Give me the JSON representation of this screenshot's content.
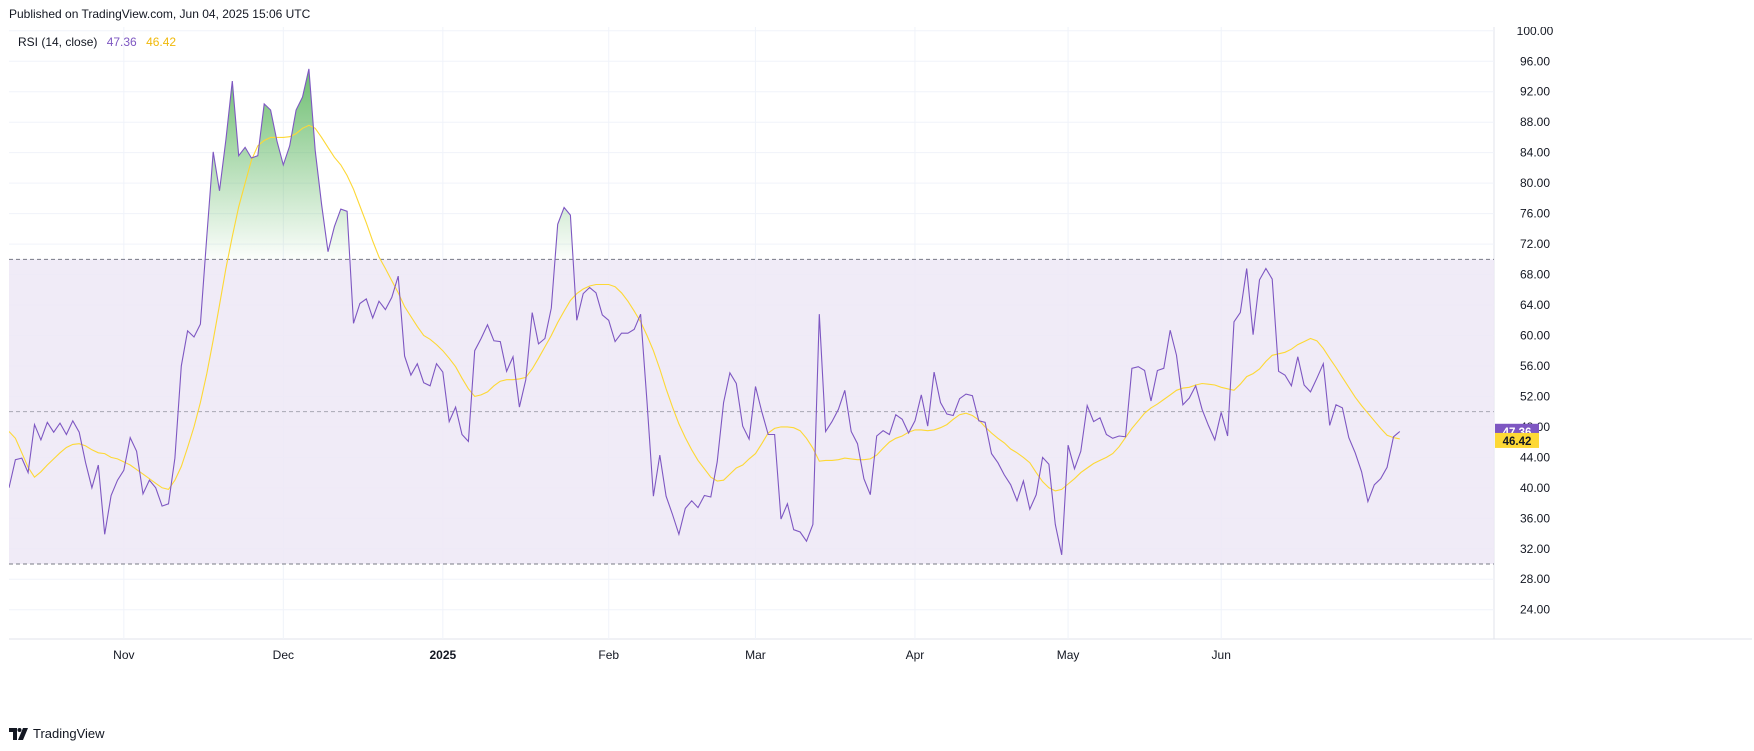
{
  "header": {
    "published": "Published on TradingView.com, Jun 04, 2025 15:06 UTC"
  },
  "legend": {
    "name": "RSI (14, close)",
    "rsi_value": "47.36",
    "ma_value": "46.42"
  },
  "footer": {
    "brand": "TradingView"
  },
  "colors": {
    "rsi_line": "#7e57c2",
    "ma_line": "#fdd835",
    "band_fill": "#ede7f6",
    "overbought_fill": "#4caf50",
    "level_line": "#787b86",
    "grid": "#f0f3fa"
  },
  "chart_data": {
    "type": "line",
    "title": "RSI (14, close)",
    "y_axis": {
      "ticks": [
        "100.00",
        "96.00",
        "92.00",
        "88.00",
        "84.00",
        "80.00",
        "76.00",
        "72.00",
        "68.00",
        "64.00",
        "60.00",
        "56.00",
        "52.00",
        "48.00",
        "44.00",
        "40.00",
        "36.00",
        "32.00",
        "28.00",
        "24.00"
      ],
      "ylim": [
        23.7,
        100.5
      ]
    },
    "x_axis": {
      "labels": [
        "Nov",
        "Dec",
        "2025",
        "Feb",
        "Mar",
        "Apr",
        "May",
        "Jun"
      ],
      "label_index": [
        18,
        43,
        68,
        94,
        117,
        142,
        166,
        190
      ],
      "bold_label": "2025"
    },
    "levels": {
      "upper": 70,
      "middle": 50,
      "lower": 30
    },
    "last_values": {
      "rsi": "47.36",
      "ma": "46.42"
    },
    "series": [
      {
        "name": "RSI",
        "values": [
          40.0,
          43.7,
          43.9,
          42.0,
          48.3,
          46.3,
          48.6,
          47.3,
          48.5,
          47.0,
          48.8,
          47.3,
          43.3,
          40.0,
          43.0,
          33.9,
          39.0,
          41.0,
          42.3,
          46.6,
          44.8,
          39.2,
          41.0,
          40.0,
          37.6,
          37.9,
          43.9,
          56.0,
          60.6,
          59.8,
          61.5,
          73.0,
          84.1,
          79.0,
          85.7,
          93.4,
          83.6,
          84.7,
          83.3,
          83.6,
          90.4,
          89.6,
          85.5,
          82.4,
          84.9,
          89.6,
          91.3,
          95.0,
          84.3,
          77.2,
          71.0,
          74.3,
          76.6,
          76.3,
          61.6,
          64.2,
          64.8,
          62.3,
          64.5,
          63.4,
          65.0,
          67.8,
          57.3,
          54.8,
          56.3,
          53.8,
          53.4,
          56.3,
          55.2,
          48.7,
          50.6,
          47.0,
          46.1,
          58.0,
          59.6,
          61.4,
          59.3,
          59.2,
          55.3,
          57.2,
          50.6,
          54.2,
          63.0,
          58.9,
          59.6,
          63.6,
          74.6,
          76.8,
          75.8,
          62.0,
          65.5,
          66.3,
          65.6,
          62.7,
          62.0,
          59.2,
          60.3,
          60.3,
          60.8,
          62.8,
          51.3,
          38.9,
          44.3,
          38.9,
          36.5,
          33.9,
          37.3,
          38.3,
          37.4,
          39.0,
          38.8,
          43.4,
          51.2,
          55.1,
          53.7,
          48.1,
          46.4,
          53.3,
          50.0,
          47.0,
          47.0,
          35.9,
          37.9,
          34.5,
          34.2,
          33.0,
          35.2,
          62.8,
          47.4,
          48.7,
          50.3,
          52.8,
          47.4,
          45.8,
          41.2,
          39.1,
          46.8,
          47.5,
          47.0,
          49.6,
          49.0,
          47.2,
          48.8,
          52.2,
          48.1,
          55.2,
          51.2,
          49.7,
          49.5,
          51.7,
          52.3,
          52.1,
          48.8,
          48.6,
          44.5,
          43.3,
          41.7,
          40.4,
          38.3,
          40.9,
          37.2,
          39.1,
          44.0,
          43.1,
          35.2,
          31.2,
          45.6,
          42.5,
          44.8,
          50.8,
          48.7,
          49.2,
          47.0,
          46.5,
          46.8,
          46.7,
          55.7,
          55.9,
          55.4,
          51.4,
          55.4,
          55.7,
          60.7,
          57.4,
          50.9,
          51.8,
          53.4,
          50.3,
          48.2,
          46.3,
          49.9,
          46.8,
          61.8,
          63.0,
          68.8,
          60.1,
          67.3,
          68.8,
          67.4,
          55.3,
          54.8,
          53.4,
          57.2,
          53.5,
          52.6,
          54.4,
          56.3,
          48.2,
          50.9,
          50.5,
          46.6,
          44.6,
          42.1,
          38.2,
          40.4,
          41.2,
          42.7,
          46.7,
          47.4
        ]
      },
      {
        "name": "RSI-based MA",
        "values": [
          47.4,
          46.5,
          44.6,
          42.7,
          41.4,
          42.1,
          43.0,
          43.8,
          44.6,
          45.3,
          45.7,
          45.8,
          45.5,
          45.0,
          44.6,
          44.5,
          44.0,
          43.8,
          43.4,
          43.0,
          42.4,
          41.8,
          41.2,
          40.6,
          40.0,
          39.8,
          41.0,
          42.8,
          45.3,
          48.0,
          51.2,
          55.0,
          59.4,
          64.0,
          68.8,
          73.0,
          76.9,
          80.0,
          83.0,
          84.9,
          85.6,
          86.0,
          86.0,
          86.0,
          86.1,
          86.5,
          87.2,
          87.6,
          87.2,
          86.0,
          84.7,
          83.4,
          82.4,
          81.0,
          79.2,
          77.0,
          74.8,
          72.4,
          70.3,
          68.8,
          67.2,
          65.6,
          63.8,
          62.5,
          61.2,
          60.0,
          59.5,
          58.8,
          58.0,
          57.0,
          55.9,
          54.4,
          53.0,
          52.0,
          52.2,
          52.6,
          53.4,
          54.0,
          54.2,
          54.2,
          54.3,
          54.5,
          55.6,
          57.0,
          58.5,
          60.0,
          61.7,
          63.2,
          64.6,
          65.5,
          66.1,
          66.5,
          66.7,
          66.7,
          66.7,
          66.4,
          65.6,
          64.5,
          63.2,
          61.8,
          60.0,
          58.0,
          55.6,
          53.0,
          50.6,
          48.4,
          46.6,
          45.0,
          43.6,
          42.5,
          41.4,
          40.9,
          41.0,
          41.8,
          42.6,
          43.0,
          43.8,
          44.5,
          45.8,
          47.2,
          47.8,
          48.0,
          48.0,
          47.9,
          47.5,
          46.5,
          45.2,
          43.5,
          43.6,
          43.6,
          43.7,
          43.9,
          43.8,
          43.7,
          43.7,
          43.8,
          44.3,
          45.2,
          46.0,
          46.5,
          46.8,
          47.3,
          47.6,
          47.6,
          47.5,
          47.6,
          47.9,
          48.3,
          49.0,
          49.6,
          49.8,
          49.5,
          48.9,
          48.0,
          47.2,
          46.5,
          45.9,
          45.1,
          44.6,
          44.0,
          43.3,
          42.0,
          40.8,
          40.0,
          39.6,
          39.8,
          40.5,
          41.2,
          42.0,
          42.6,
          43.2,
          43.6,
          44.0,
          44.5,
          45.4,
          46.6,
          47.8,
          48.8,
          49.8,
          50.5,
          51.0,
          51.6,
          52.2,
          52.8,
          53.1,
          53.2,
          53.5,
          53.7,
          53.6,
          53.5,
          53.2,
          53.0,
          52.8,
          53.6,
          54.6,
          55.0,
          55.6,
          56.6,
          57.4,
          57.6,
          57.8,
          58.2,
          58.8,
          59.2,
          59.6,
          59.3,
          58.3,
          57.0,
          55.8,
          54.5,
          53.2,
          51.9,
          50.8,
          49.8,
          48.8,
          47.8,
          46.9,
          46.6,
          46.42
        ]
      }
    ]
  }
}
